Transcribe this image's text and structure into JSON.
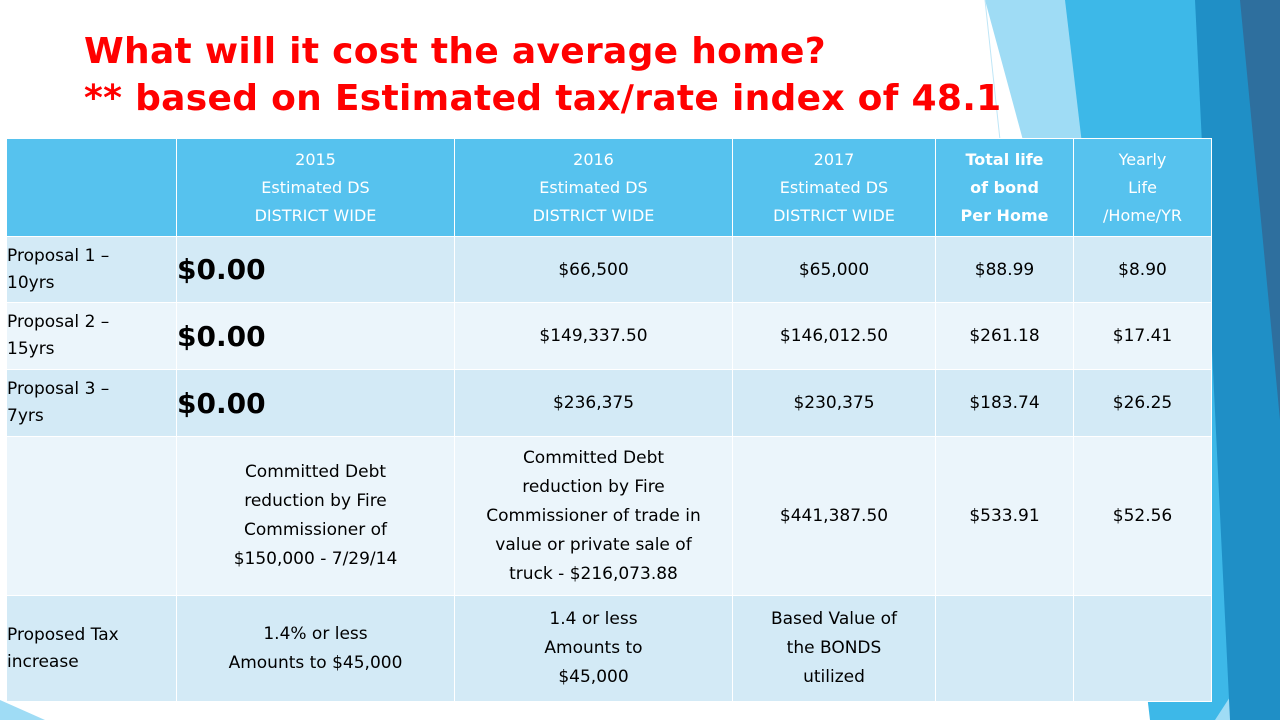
{
  "title": {
    "line1": "What will it cost the average home?",
    "line2": "** based on Estimated tax/rate index of 48.1"
  },
  "table": {
    "headers": [
      {
        "lines": []
      },
      {
        "lines": [
          "2015",
          "Estimated DS",
          "DISTRICT WIDE"
        ]
      },
      {
        "lines": [
          "2016",
          "Estimated DS",
          "DISTRICT WIDE"
        ]
      },
      {
        "lines": [
          "2017",
          "Estimated DS",
          "DISTRICT WIDE"
        ]
      },
      {
        "lines": [
          "Total life",
          "of bond",
          "Per Home"
        ]
      },
      {
        "lines": [
          "Yearly",
          "Life",
          "/Home/YR"
        ]
      }
    ],
    "rows": [
      {
        "label": [
          "Proposal 1 –",
          "10yrs"
        ],
        "y2015": "$0.00",
        "y2016": "$66,500",
        "y2017": "$65,000",
        "total": "$88.99",
        "yearly": "$8.90"
      },
      {
        "label": [
          "Proposal 2 –",
          "15yrs"
        ],
        "y2015": "$0.00",
        "y2016": "$149,337.50",
        "y2017": "$146,012.50",
        "total": "$261.18",
        "yearly": "$17.41"
      },
      {
        "label": [
          "Proposal 3 –",
          "7yrs"
        ],
        "y2015": "$0.00",
        "y2016": "$236,375",
        "y2017": "$230,375",
        "total": "$183.74",
        "yearly": "$26.25"
      }
    ],
    "committed_row": {
      "label": "",
      "y2015": [
        "Committed Debt",
        "reduction by Fire",
        "Commissioner of",
        "$150,000 - 7/29/14"
      ],
      "y2016": [
        "Committed Debt",
        "reduction by Fire",
        "Commissioner of trade in",
        "value or private sale of",
        "truck - $216,073.88"
      ],
      "y2017": "$441,387.50",
      "total": "$533.91",
      "yearly": "$52.56"
    },
    "tax_row": {
      "label": [
        "Proposed Tax",
        "increase"
      ],
      "y2015": [
        "1.4% or less",
        "Amounts to $45,000"
      ],
      "y2016": [
        "1.4 or less",
        "Amounts to",
        "$45,000"
      ],
      "y2017": [
        "Based Value of",
        "the BONDS",
        "utilized"
      ],
      "total": "",
      "yearly": ""
    }
  }
}
